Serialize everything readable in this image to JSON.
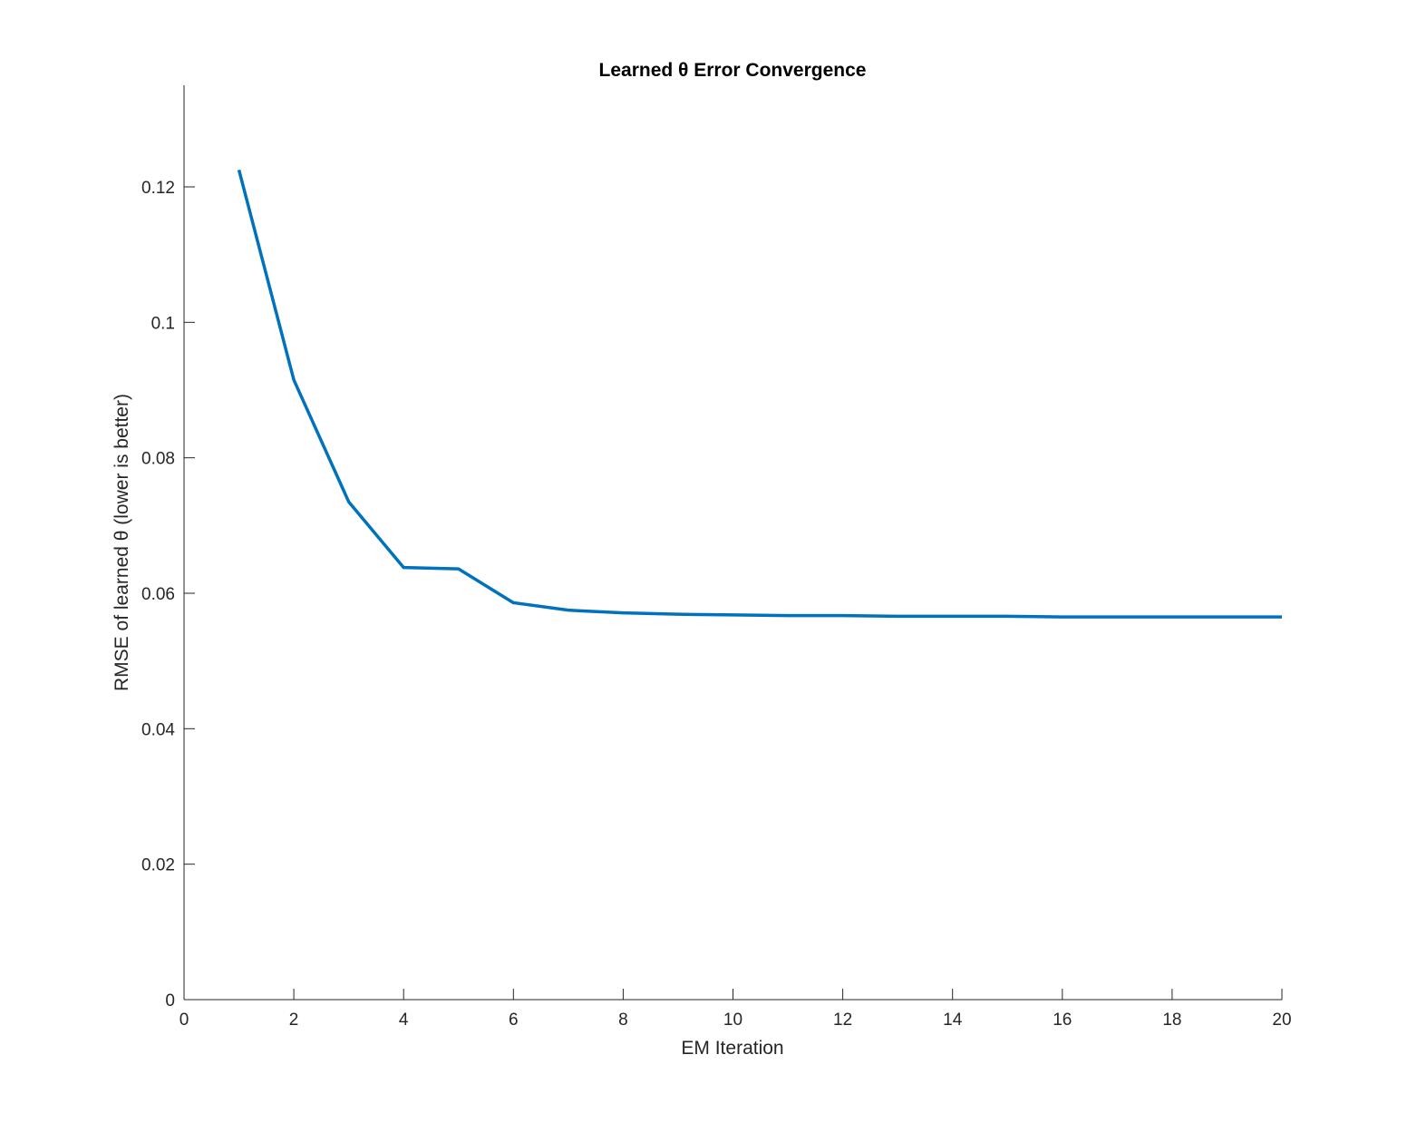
{
  "chart_data": {
    "type": "line",
    "title": "Learned θ Error Convergence",
    "xlabel": "EM Iteration",
    "ylabel": "RMSE of learned θ (lower is better)",
    "xlim": [
      0,
      20
    ],
    "ylim": [
      0,
      0.135
    ],
    "xticks": [
      0,
      2,
      4,
      6,
      8,
      10,
      12,
      14,
      16,
      18,
      20
    ],
    "xtick_labels": [
      "0",
      "2",
      "4",
      "6",
      "8",
      "10",
      "12",
      "14",
      "16",
      "18",
      "20"
    ],
    "yticks": [
      0,
      0.02,
      0.04,
      0.06,
      0.08,
      0.1,
      0.12
    ],
    "ytick_labels": [
      "0",
      "0.02",
      "0.04",
      "0.06",
      "0.08",
      "0.1",
      "0.12"
    ],
    "grid": false,
    "legend": "none",
    "box": "off",
    "line_color": "#0072BD",
    "series": [
      {
        "x": [
          1,
          2,
          3,
          4,
          5,
          6,
          7,
          8,
          9,
          10,
          11,
          12,
          13,
          14,
          15,
          16,
          17,
          18,
          19,
          20
        ],
        "values": [
          0.1225,
          0.0915,
          0.0735,
          0.0638,
          0.0636,
          0.0586,
          0.0575,
          0.0571,
          0.0569,
          0.0568,
          0.0567,
          0.0567,
          0.0566,
          0.0566,
          0.0566,
          0.0565,
          0.0565,
          0.0565,
          0.0565,
          0.0565
        ]
      }
    ]
  }
}
